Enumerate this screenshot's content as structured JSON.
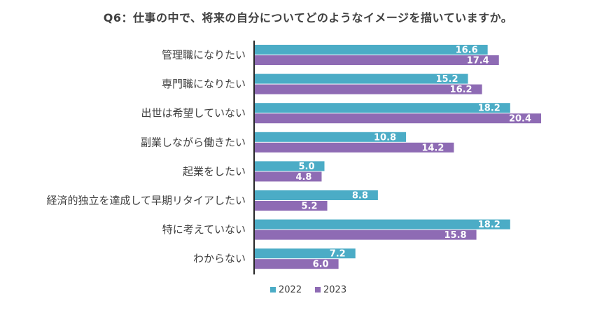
{
  "chart_data": {
    "type": "bar",
    "orientation": "horizontal",
    "title": "Q6：仕事の中で、将来の自分についてどのようなイメージを描いていますか。",
    "categories": [
      "管理職になりたい",
      "専門職になりたい",
      "出世は希望していない",
      "副業しながら働きたい",
      "起業をしたい",
      "経済的独立を達成して早期リタイアしたい",
      "特に考えていない",
      "わからない"
    ],
    "series": [
      {
        "name": "2022",
        "color": "#4bacc6",
        "values": [
          16.6,
          15.2,
          18.2,
          10.8,
          5.0,
          8.8,
          18.2,
          7.2
        ]
      },
      {
        "name": "2023",
        "color": "#8e6bb4",
        "values": [
          17.4,
          16.2,
          20.4,
          14.2,
          4.8,
          5.2,
          15.8,
          6.0
        ]
      }
    ],
    "xlim": [
      0,
      25
    ],
    "grid": false,
    "legend": "bottom-center",
    "data_labels": "inside-end"
  }
}
